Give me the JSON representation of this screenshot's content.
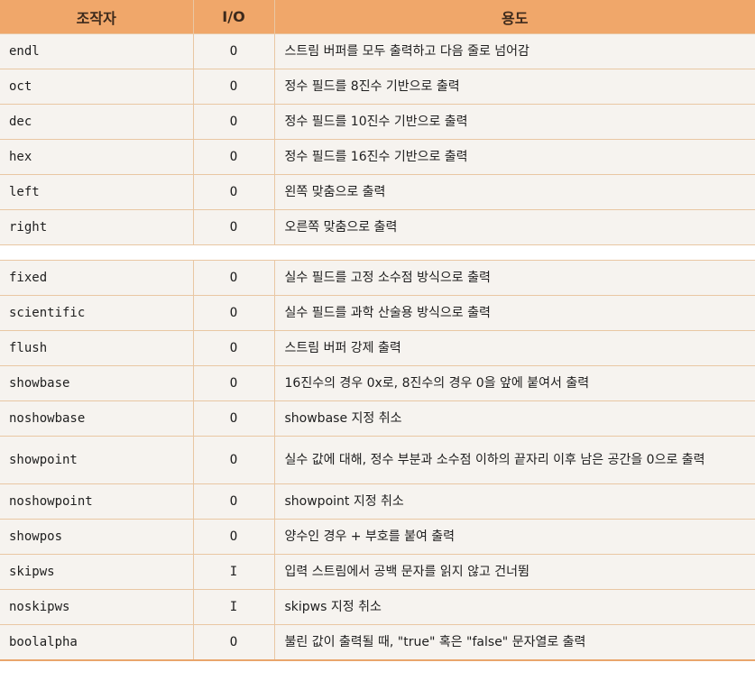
{
  "header": {
    "col_operator": "조작자",
    "col_io": "I/O",
    "col_usage": "용도"
  },
  "group1": [
    {
      "name": "endl",
      "io": "O",
      "desc": "스트림 버퍼를 모두 출력하고 다음 줄로 넘어감"
    },
    {
      "name": "oct",
      "io": "O",
      "desc": "정수 필드를 8진수 기반으로 출력"
    },
    {
      "name": "dec",
      "io": "O",
      "desc": "정수 필드를 10진수 기반으로 출력"
    },
    {
      "name": "hex",
      "io": "O",
      "desc": "정수 필드를 16진수 기반으로 출력"
    },
    {
      "name": "left",
      "io": "O",
      "desc": "왼쪽 맞춤으로 출력"
    },
    {
      "name": "right",
      "io": "O",
      "desc": "오른쪽 맞춤으로 출력"
    }
  ],
  "group2": [
    {
      "name": "fixed",
      "io": "O",
      "desc": "실수 필드를 고정 소수점 방식으로 출력"
    },
    {
      "name": "scientific",
      "io": "O",
      "desc": "실수 필드를 과학 산술용 방식으로 출력"
    },
    {
      "name": "flush",
      "io": "O",
      "desc": "스트림 버퍼 강제 출력"
    },
    {
      "name": "showbase",
      "io": "O",
      "desc": "16진수의 경우 0x로, 8진수의 경우 0을 앞에 붙여서 출력"
    },
    {
      "name": "noshowbase",
      "io": "O",
      "desc": "showbase 지정 취소"
    },
    {
      "name": "showpoint",
      "io": "O",
      "desc": "실수 값에 대해, 정수 부분과 소수점 이하의 끝자리 이후 남은 공간을 0으로 출력"
    },
    {
      "name": "noshowpoint",
      "io": "O",
      "desc": "showpoint 지정 취소"
    },
    {
      "name": "showpos",
      "io": "O",
      "desc": "양수인 경우 + 부호를 붙여 출력"
    },
    {
      "name": "skipws",
      "io": "I",
      "desc": "입력 스트림에서 공백 문자를 읽지 않고 건너뜀"
    },
    {
      "name": "noskipws",
      "io": "I",
      "desc": "skipws 지정 취소"
    },
    {
      "name": "boolalpha",
      "io": "O",
      "desc": "불린 값이 출력될 때, \"true\" 혹은 \"false\" 문자열로 출력"
    }
  ]
}
